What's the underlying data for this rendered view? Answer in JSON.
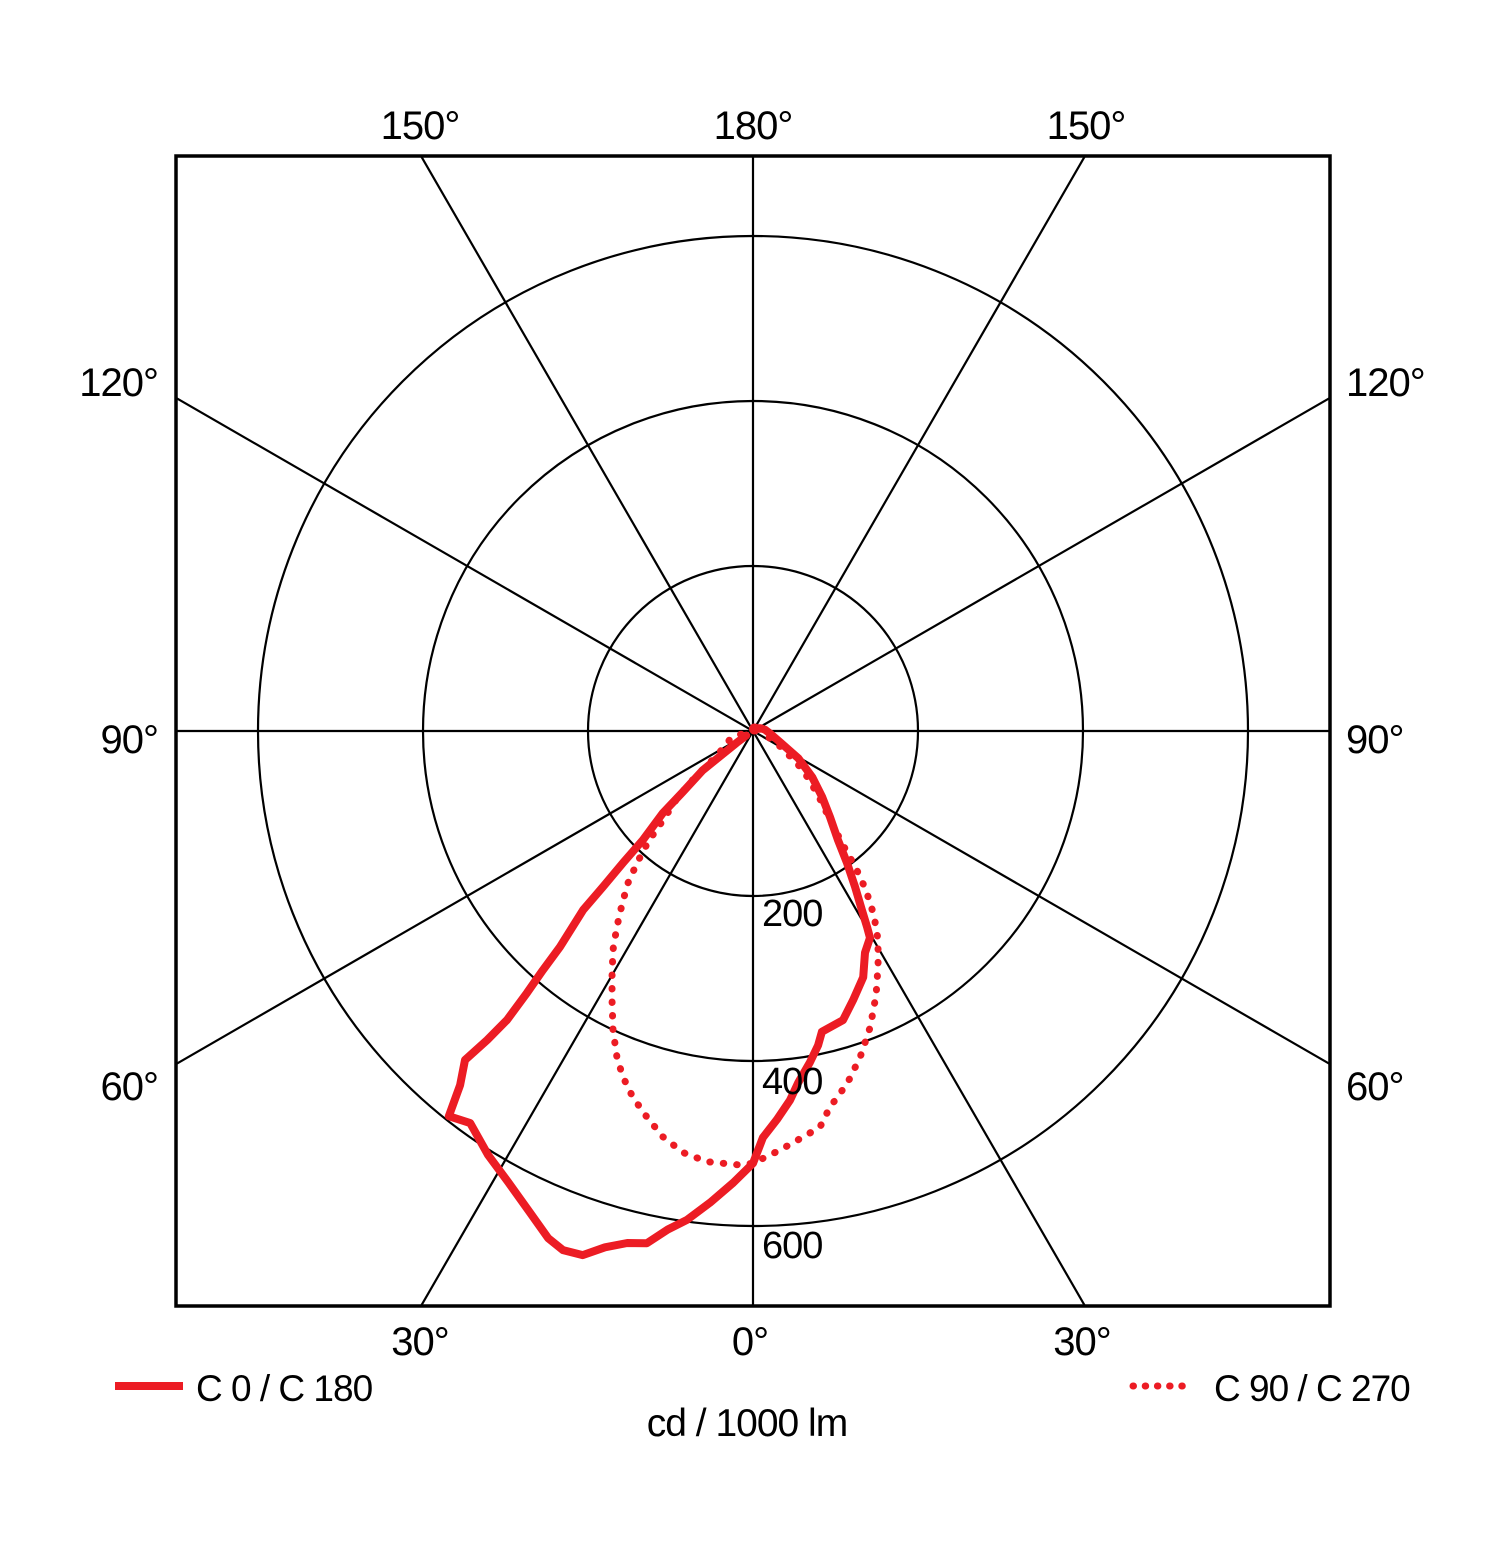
{
  "chart_data": {
    "type": "line",
    "subtype": "polar-photometric-distribution",
    "unit_label": "cd / 1000 lm",
    "radial_ticks": [
      200,
      400,
      600
    ],
    "radial_tick_labels": [
      "200",
      "400",
      "600"
    ],
    "radial_range_visible": [
      0,
      700
    ],
    "angle_lines_deg": [
      0,
      30,
      60,
      90,
      120,
      150
    ],
    "angle_tick_labels": {
      "top": [
        "150°",
        "180°",
        "150°"
      ],
      "left": [
        "120°",
        "90°",
        "60°"
      ],
      "right": [
        "120°",
        "90°",
        "60°"
      ],
      "bottom": [
        "30°",
        "0°",
        "30°"
      ]
    },
    "colors": {
      "curve": "#EC1C24",
      "grid": "#000000",
      "background": "#FFFFFF"
    },
    "legend": [
      {
        "label": "C 0 / C 180",
        "style": "solid"
      },
      {
        "label": "C 90 / C 270",
        "style": "dotted"
      }
    ],
    "series": [
      {
        "name": "C 0 / C 180",
        "style": "solid",
        "points_gamma_deg_vs_cd_per_1000lm": "negative gamma = C180 side (left), 0 = nadir",
        "points": [
          [
            -56,
            10
          ],
          [
            -54,
            25
          ],
          [
            -52,
            77
          ],
          [
            -49,
            113
          ],
          [
            -47.7,
            148
          ],
          [
            -45.3,
            188
          ],
          [
            -44.6,
            224
          ],
          [
            -43.9,
            262
          ],
          [
            -43.5,
            299
          ],
          [
            -41.8,
            351
          ],
          [
            -41.3,
            386
          ],
          [
            -40.8,
            419
          ],
          [
            -40.4,
            460
          ],
          [
            -40.7,
            494
          ],
          [
            -41.2,
            530
          ],
          [
            -39.6,
            557
          ],
          [
            -38.3,
            595
          ],
          [
            -35.8,
            586
          ],
          [
            -32,
            606
          ],
          [
            -28.5,
            622
          ],
          [
            -24.9,
            643
          ],
          [
            -22,
            663
          ],
          [
            -20.1,
            670
          ],
          [
            -18,
            668
          ],
          [
            -16,
            651
          ],
          [
            -13.8,
            639
          ],
          [
            -11.7,
            634
          ],
          [
            -9.7,
            613
          ],
          [
            -7.7,
            598
          ],
          [
            -5.2,
            574
          ],
          [
            -2.5,
            548
          ],
          [
            0,
            524
          ],
          [
            1.4,
            493
          ],
          [
            3.5,
            472
          ],
          [
            5.7,
            450
          ],
          [
            7.3,
            430
          ],
          [
            9.7,
            408
          ],
          [
            11.7,
            389
          ],
          [
            12.9,
            374
          ],
          [
            17.3,
            367
          ],
          [
            20.4,
            348
          ],
          [
            24.1,
            327
          ],
          [
            26.8,
            301
          ],
          [
            29.5,
            288
          ],
          [
            30.2,
            275
          ],
          [
            31.3,
            254
          ],
          [
            33.2,
            226
          ],
          [
            35.5,
            196
          ],
          [
            37.9,
            168
          ],
          [
            41.8,
            140
          ],
          [
            46.3,
            116
          ],
          [
            52.1,
            91
          ],
          [
            59,
            64
          ],
          [
            67.8,
            35
          ],
          [
            80,
            22
          ],
          [
            95,
            15
          ],
          [
            110,
            10
          ],
          [
            125,
            6
          ]
        ]
      },
      {
        "name": "C 90 / C 270",
        "style": "dotted",
        "points_gamma_deg_vs_cd_per_1000lm": "negative gamma = C270 side (left), 0 = nadir",
        "points": [
          [
            -75,
            15
          ],
          [
            -72,
            28
          ],
          [
            -56,
            52
          ],
          [
            -51,
            94
          ],
          [
            -48.7,
            121
          ],
          [
            -45.3,
            153
          ],
          [
            -43.4,
            185
          ],
          [
            -41.3,
            213
          ],
          [
            -39.4,
            239
          ],
          [
            -37,
            264
          ],
          [
            -34.8,
            289
          ],
          [
            -32.6,
            315
          ],
          [
            -29.8,
            344
          ],
          [
            -27.4,
            371
          ],
          [
            -25.1,
            400
          ],
          [
            -22.6,
            429
          ],
          [
            -20.6,
            448
          ],
          [
            -18.2,
            467
          ],
          [
            -15.4,
            485
          ],
          [
            -12.5,
            504
          ],
          [
            -9.4,
            518
          ],
          [
            -6.1,
            525
          ],
          [
            -2.1,
            526
          ],
          [
            0,
            524
          ],
          [
            3.7,
            509
          ],
          [
            7,
            496
          ],
          [
            9.6,
            487
          ],
          [
            11.5,
            466
          ],
          [
            15,
            442
          ],
          [
            18.2,
            416
          ],
          [
            21.6,
            386
          ],
          [
            25,
            353
          ],
          [
            28.1,
            322
          ],
          [
            30.9,
            295
          ],
          [
            33.3,
            267
          ],
          [
            35.4,
            236
          ],
          [
            36.9,
            208
          ],
          [
            38.3,
            176
          ],
          [
            40.9,
            143
          ],
          [
            45.4,
            111
          ],
          [
            52,
            77
          ],
          [
            59.6,
            41
          ],
          [
            70,
            18
          ],
          [
            95,
            12
          ],
          [
            112,
            7
          ]
        ]
      }
    ]
  }
}
